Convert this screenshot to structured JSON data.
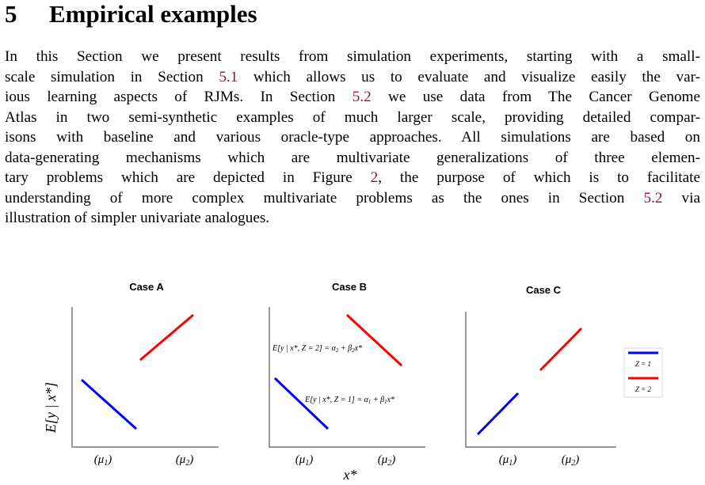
{
  "section": {
    "number": "5",
    "title": "Empirical examples"
  },
  "paragraph": {
    "lines": [
      [
        "In this Section we present results from simulation experiments, starting with a small-"
      ],
      [
        "scale simulation in Section ",
        {
          "ref": "5.1"
        },
        " which allows us to evaluate and visualize easily the var-"
      ],
      [
        "ious learning aspects of RJMs. In Section ",
        {
          "ref": "5.2"
        },
        " we use data from The Cancer Genome"
      ],
      [
        "Atlas in two semi-synthetic examples of much larger scale, providing detailed compar-"
      ],
      [
        "isons with baseline and various oracle-type approaches. All simulations are based on"
      ],
      [
        "data-generating mechanisms which are multivariate generalizations of three elemen-"
      ],
      [
        "tary problems which are depicted in Figure ",
        {
          "ref": "2"
        },
        ", the purpose of which is to facilitate"
      ],
      [
        "understanding of more complex multivariate problems as the ones in Section ",
        {
          "ref": "5.2"
        },
        " via"
      ],
      [
        "illustration of simpler univariate analogues."
      ]
    ]
  },
  "figure": {
    "ylabel": "E[y | x*]",
    "xlabel": "x*",
    "ref_color": "#8b1a3a",
    "colors": {
      "z1": "#0000ff",
      "z2": "#ff0000",
      "axis": "#999999"
    },
    "panels": [
      {
        "title": "Case A",
        "tick1": "(μ1)",
        "tick2": "(μ2)"
      },
      {
        "title": "Case B",
        "tick1": "(μ1)",
        "tick2": "(μ2)",
        "eq2": "E[y | x*, Z = 2] = α2 + β2x*",
        "eq1": "E[y | x*, Z = 1] = α1 + β1x*"
      },
      {
        "title": "Case C",
        "tick1": "(μ1)",
        "tick2": "(μ2)"
      }
    ],
    "legend": {
      "z1": "Z = 1",
      "z2": "Z = 2"
    }
  }
}
